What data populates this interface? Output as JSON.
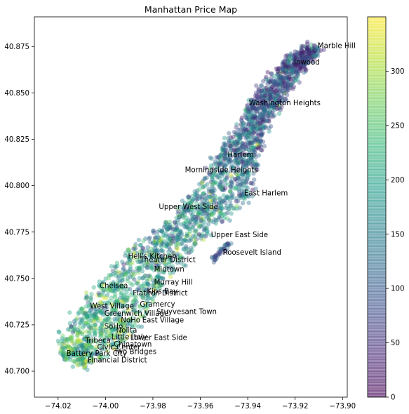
{
  "chart_data": {
    "type": "scatter",
    "title": "Manhattan Price Map",
    "xlabel": "",
    "ylabel": "",
    "xlim": [
      -74.03,
      -73.898
    ],
    "ylim": [
      40.686,
      40.891
    ],
    "x_ticks": [
      -74.02,
      -74.0,
      -73.98,
      -73.96,
      -73.94,
      -73.92,
      -73.9
    ],
    "x_tick_labels": [
      "−74.02",
      "−74.00",
      "−73.98",
      "−73.96",
      "−73.94",
      "−73.92",
      "−73.90"
    ],
    "y_ticks": [
      40.7,
      40.725,
      40.75,
      40.775,
      40.8,
      40.825,
      40.85,
      40.875
    ],
    "y_tick_labels": [
      "40.700",
      "40.725",
      "40.750",
      "40.775",
      "40.800",
      "40.825",
      "40.850",
      "40.875"
    ],
    "grid": false,
    "marker_alpha": 0.4,
    "colormap": "viridis",
    "colorbar": {
      "vmin": 0,
      "vmax": 350,
      "ticks": [
        0,
        50,
        100,
        150,
        200,
        250,
        300
      ],
      "tick_labels": [
        "0",
        "50",
        "100",
        "150",
        "200",
        "250",
        "300"
      ]
    },
    "colors": {
      "viridis_low": "#440154",
      "viridis_mid": "#21918c",
      "viridis_high": "#fde725"
    },
    "annotations": [
      {
        "text": "Marble Hill",
        "x": -73.9105,
        "y": 40.8757
      },
      {
        "text": "Inwood",
        "x": -73.9205,
        "y": 40.8668
      },
      {
        "text": "Washington Heights",
        "x": -73.9395,
        "y": 40.8448
      },
      {
        "text": "Harlem",
        "x": -73.9485,
        "y": 40.8168
      },
      {
        "text": "Morningside Heights",
        "x": -73.9665,
        "y": 40.8088
      },
      {
        "text": "East Harlem",
        "x": -73.9415,
        "y": 40.7963
      },
      {
        "text": "Upper West Side",
        "x": -73.9775,
        "y": 40.7888
      },
      {
        "text": "Upper East Side",
        "x": -73.9555,
        "y": 40.7738
      },
      {
        "text": "Roosevelt Island",
        "x": -73.9505,
        "y": 40.7643
      },
      {
        "text": "Hell's Kitchen",
        "x": -73.9905,
        "y": 40.7623
      },
      {
        "text": "Theater District",
        "x": -73.9855,
        "y": 40.7603
      },
      {
        "text": "Midtown",
        "x": -73.9795,
        "y": 40.7553
      },
      {
        "text": "Murray Hill",
        "x": -73.9795,
        "y": 40.7483
      },
      {
        "text": "Chelsea",
        "x": -74.0025,
        "y": 40.7463
      },
      {
        "text": "Kips Bay",
        "x": -73.9825,
        "y": 40.7433
      },
      {
        "text": "Flatiron District",
        "x": -73.9885,
        "y": 40.7423
      },
      {
        "text": "Gramercy",
        "x": -73.9855,
        "y": 40.7363
      },
      {
        "text": "West Village",
        "x": -74.0065,
        "y": 40.7353
      },
      {
        "text": "Stuyvesant Town",
        "x": -73.9785,
        "y": 40.7323
      },
      {
        "text": "Greenwich Village",
        "x": -74.0005,
        "y": 40.7313
      },
      {
        "text": "NoHo",
        "x": -73.9935,
        "y": 40.7278
      },
      {
        "text": "East Village",
        "x": -73.9845,
        "y": 40.7278
      },
      {
        "text": "SoHo",
        "x": -74.0005,
        "y": 40.7243
      },
      {
        "text": "Nolita",
        "x": -73.9955,
        "y": 40.7223
      },
      {
        "text": "Little Italy",
        "x": -73.9975,
        "y": 40.7188
      },
      {
        "text": "Lower East Side",
        "x": -73.9895,
        "y": 40.7183
      },
      {
        "text": "Tribeca",
        "x": -74.0085,
        "y": 40.7168
      },
      {
        "text": "Chinatown",
        "x": -73.9965,
        "y": 40.7148
      },
      {
        "text": "Civic Center",
        "x": -74.0035,
        "y": 40.7133
      },
      {
        "text": "Two Bridges",
        "x": -73.9965,
        "y": 40.7108
      },
      {
        "text": "Battery Park City",
        "x": -74.0165,
        "y": 40.7098
      },
      {
        "text": "Financial District",
        "x": -74.0075,
        "y": 40.7063
      }
    ]
  }
}
